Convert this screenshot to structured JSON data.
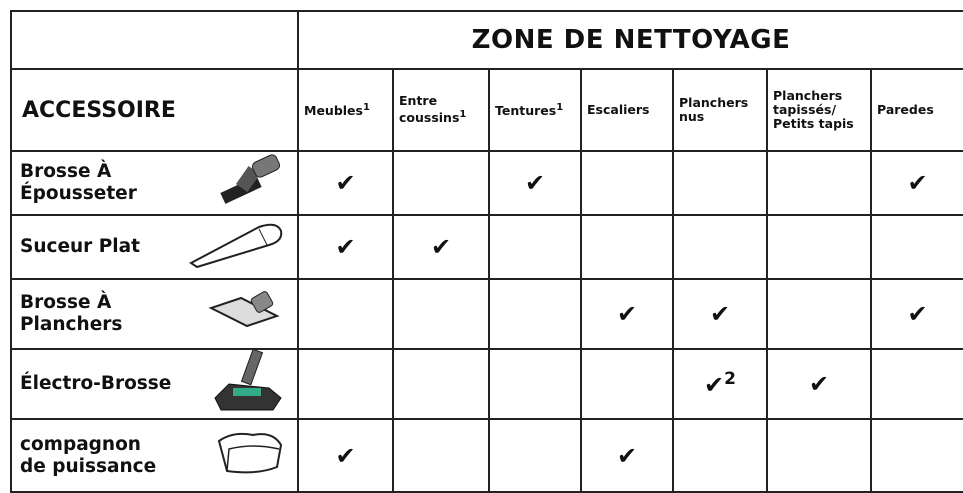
{
  "header": {
    "title": "ZONE DE NETTOYAGE",
    "accessory_label": "ACCESSOIRE",
    "columns": [
      {
        "lines": [
          "Meubles"
        ],
        "sup": "1"
      },
      {
        "lines": [
          "Entre",
          "coussins"
        ],
        "sup": "1"
      },
      {
        "lines": [
          "Tentures"
        ],
        "sup": "1"
      },
      {
        "lines": [
          "Escaliers"
        ]
      },
      {
        "lines": [
          "Planchers",
          "nus"
        ]
      },
      {
        "lines": [
          "Planchers",
          "tapissés/",
          "Petits tapis"
        ]
      },
      {
        "lines": [
          "Paredes"
        ]
      }
    ]
  },
  "table": {
    "rows": [
      {
        "lines": [
          "Brosse À",
          "Épousseter"
        ],
        "cells": [
          "✔",
          null,
          "✔",
          null,
          null,
          null,
          "✔"
        ]
      },
      {
        "lines": [
          "Suceur Plat"
        ],
        "cells": [
          "✔",
          "✔",
          null,
          null,
          null,
          null,
          null
        ]
      },
      {
        "lines": [
          "Brosse À",
          "Planchers"
        ],
        "cells": [
          null,
          null,
          null,
          "✔",
          "✔",
          null,
          "✔"
        ]
      },
      {
        "lines": [
          "Électro-Brosse"
        ],
        "cells": [
          null,
          null,
          null,
          null,
          {
            "mark": "✔",
            "note": "2"
          },
          "✔",
          null
        ]
      },
      {
        "lines": [
          "compagnon",
          "de puissance"
        ],
        "cells": [
          "✔",
          null,
          null,
          "✔",
          null,
          null,
          null
        ]
      }
    ]
  }
}
